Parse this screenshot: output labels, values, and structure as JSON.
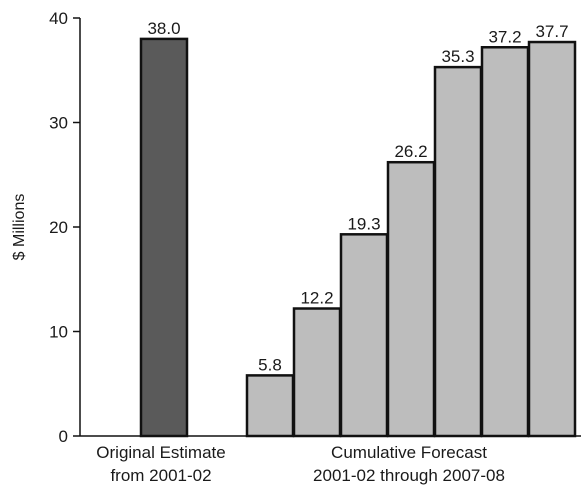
{
  "chart_data": {
    "type": "bar",
    "ylabel": "$ Millions",
    "ylim": [
      0,
      40
    ],
    "yticks": [
      0,
      10,
      20,
      30,
      40
    ],
    "grid": false,
    "colors": {
      "original": "#5a5a5a",
      "forecast": "#bdbdbd",
      "outline": "#111111"
    },
    "groups": [
      {
        "label_lines": [
          "Original Estimate",
          "from 2001-02"
        ],
        "color_key": "original",
        "bars": [
          {
            "value": 38.0,
            "label": "38.0"
          }
        ]
      },
      {
        "label_lines": [
          "Cumulative Forecast",
          "2001-02 through 2007-08"
        ],
        "color_key": "forecast",
        "bars": [
          {
            "value": 5.8,
            "label": "5.8"
          },
          {
            "value": 12.2,
            "label": "12.2"
          },
          {
            "value": 19.3,
            "label": "19.3"
          },
          {
            "value": 26.2,
            "label": "26.2"
          },
          {
            "value": 35.3,
            "label": "35.3"
          },
          {
            "value": 37.2,
            "label": "37.2"
          },
          {
            "value": 37.7,
            "label": "37.7"
          }
        ]
      }
    ]
  }
}
